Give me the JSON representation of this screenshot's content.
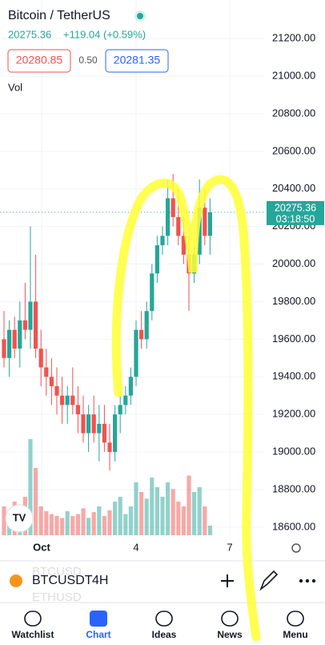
{
  "header": {
    "title": "Bitcoin / TetherUS",
    "price": "20275.36",
    "change": "+119.04 (+0.59%)",
    "sell": "20280.85",
    "spread": "0.50",
    "buy": "20281.35",
    "vol_label": "Vol"
  },
  "chart_data": {
    "type": "candlestick",
    "up_color": "#26a69a",
    "down_color": "#ef5350",
    "open": [
      19600,
      19500,
      19650,
      19550,
      19700,
      19650,
      19800,
      19550,
      19450,
      19400,
      19350,
      19300,
      19250,
      19300,
      19250,
      19200,
      19100,
      19200,
      19100,
      19150,
      19050,
      19000,
      19200,
      19250,
      19300,
      19400,
      19650,
      19600,
      19750,
      19950,
      20100,
      20150,
      20350,
      20250,
      20150,
      20050,
      19950,
      20050,
      20300,
      20150
    ],
    "high": [
      19750,
      19700,
      19720,
      19800,
      19900,
      20200,
      20050,
      19650,
      19550,
      19500,
      19450,
      19400,
      19350,
      19450,
      19350,
      19300,
      19250,
      19300,
      19250,
      19250,
      19150,
      19250,
      19300,
      19350,
      19450,
      19700,
      19750,
      19800,
      20000,
      20150,
      20200,
      20450,
      20480,
      20400,
      20250,
      20150,
      20100,
      20450,
      20400,
      20350
    ],
    "low": [
      19450,
      19400,
      19500,
      19450,
      19600,
      19550,
      19500,
      19350,
      19300,
      19250,
      19200,
      19150,
      19150,
      19200,
      19100,
      19050,
      19000,
      19050,
      18950,
      19000,
      18900,
      18950,
      19100,
      19200,
      19250,
      19350,
      19550,
      19550,
      19700,
      19900,
      20050,
      20100,
      20200,
      20100,
      20000,
      19750,
      19900,
      20000,
      20100,
      20050
    ],
    "close": [
      19500,
      19650,
      19550,
      19700,
      19650,
      19800,
      19550,
      19450,
      19400,
      19350,
      19300,
      19250,
      19300,
      19250,
      19200,
      19100,
      19200,
      19100,
      19150,
      19050,
      19000,
      19200,
      19250,
      19300,
      19400,
      19650,
      19600,
      19750,
      19950,
      20100,
      20150,
      20350,
      20250,
      20150,
      20050,
      19950,
      20050,
      20300,
      20150,
      20275.36
    ],
    "volume": [
      30,
      25,
      35,
      28,
      40,
      100,
      70,
      30,
      25,
      22,
      20,
      18,
      25,
      20,
      22,
      28,
      18,
      24,
      30,
      20,
      26,
      35,
      40,
      22,
      30,
      55,
      45,
      38,
      60,
      50,
      40,
      55,
      48,
      35,
      30,
      62,
      45,
      50,
      30,
      10
    ],
    "ylim": [
      18557,
      21405
    ],
    "vlim": [
      0,
      100
    ],
    "yticks": [
      {
        "value": 21200,
        "label": "21200.00"
      },
      {
        "value": 21000,
        "label": "21000.00"
      },
      {
        "value": 20800,
        "label": "20800.00"
      },
      {
        "value": 20600,
        "label": "20600.00"
      },
      {
        "value": 20400,
        "label": "20400.00"
      },
      {
        "value": 20200,
        "label": "20200.00"
      },
      {
        "value": 20000,
        "label": "20000.00"
      },
      {
        "value": 19800,
        "label": "19800.00"
      },
      {
        "value": 19600,
        "label": "19600.00"
      },
      {
        "value": 19400,
        "label": "19400.00"
      },
      {
        "value": 19200,
        "label": "19200.00"
      },
      {
        "value": 19000,
        "label": "19000.00"
      },
      {
        "value": 18800,
        "label": "18800.00"
      },
      {
        "value": 18600,
        "label": "18600.00"
      }
    ],
    "x_labels": [
      "Oct",
      "4",
      "7"
    ],
    "last_price": "20275.36",
    "countdown": "03:18:50",
    "grid": true
  },
  "toolbar": {
    "symbol": "BTCUSDT",
    "interval": "4H",
    "ghost": [
      "BTCUSD",
      "ETHUSD"
    ]
  },
  "nav": [
    "Watchlist",
    "Chart",
    "Ideas",
    "News",
    "Menu"
  ]
}
